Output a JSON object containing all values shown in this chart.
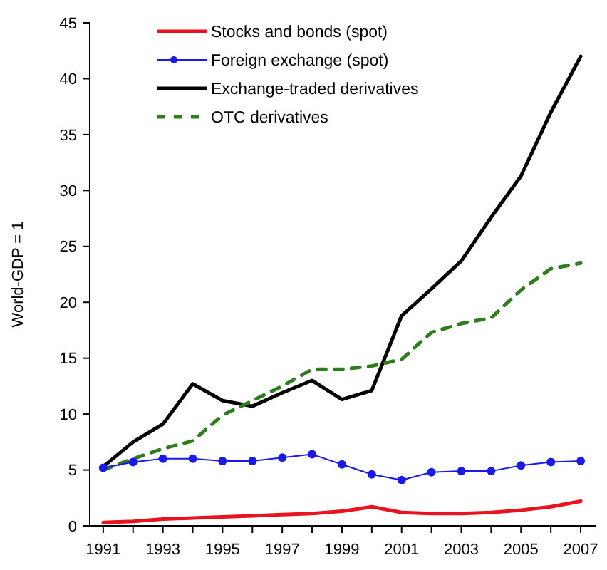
{
  "chart_data": {
    "type": "line",
    "ylabel": "World-GDP = 1",
    "x": [
      1991,
      1992,
      1993,
      1994,
      1995,
      1996,
      1997,
      1998,
      1999,
      2000,
      2001,
      2002,
      2003,
      2004,
      2005,
      2006,
      2007
    ],
    "xlim": [
      1990.55,
      2007.5
    ],
    "xticks": [
      1991,
      {
        "value": 1992,
        "label": null
      },
      1993,
      {
        "value": 1994,
        "label": null
      },
      1995,
      {
        "value": 1996,
        "label": null
      },
      1997,
      {
        "value": 1998,
        "label": null
      },
      1999,
      {
        "value": 2000,
        "label": null
      },
      2001,
      {
        "value": 2002,
        "label": null
      },
      2003,
      {
        "value": 2004,
        "label": null
      },
      2005,
      {
        "value": 2006,
        "label": null
      },
      2007
    ],
    "ylim": [
      0,
      45
    ],
    "yticks": [
      0,
      5,
      10,
      15,
      20,
      25,
      30,
      35,
      40,
      45
    ],
    "grid": false,
    "legend": "top left",
    "series": [
      {
        "name": "Stocks and bonds (spot)",
        "color": "#e8131f",
        "marker": "none",
        "line_style": "solid",
        "values": [
          0.3,
          0.4,
          0.6,
          0.7,
          0.8,
          0.9,
          1.0,
          1.1,
          1.3,
          1.7,
          1.2,
          1.1,
          1.1,
          1.2,
          1.4,
          1.7,
          2.2
        ]
      },
      {
        "name": "Foreign exchange (spot)",
        "color": "#1a1ae6",
        "marker": "circle",
        "line_style": "solid",
        "values": [
          5.2,
          5.7,
          6.0,
          6.0,
          5.8,
          5.8,
          6.1,
          6.4,
          5.5,
          4.6,
          4.1,
          4.8,
          4.9,
          4.9,
          5.4,
          5.7,
          5.8
        ]
      },
      {
        "name": "Exchange-traded derivatives",
        "color": "#000000",
        "marker": "none",
        "line_style": "solid",
        "values": [
          5.3,
          7.5,
          9.1,
          12.7,
          11.2,
          10.7,
          11.9,
          13.0,
          11.3,
          12.1,
          18.8,
          21.2,
          23.7,
          27.6,
          31.3,
          37.0,
          42.0
        ]
      },
      {
        "name": "OTC derivatives",
        "color": "#2e7d1e",
        "marker": "none",
        "line_style": "dashed",
        "values": [
          5.0,
          6.0,
          6.9,
          7.6,
          9.9,
          11.2,
          12.5,
          14.0,
          14.0,
          14.3,
          14.9,
          17.3,
          18.1,
          18.6,
          21.1,
          23.0,
          23.5
        ]
      }
    ]
  }
}
